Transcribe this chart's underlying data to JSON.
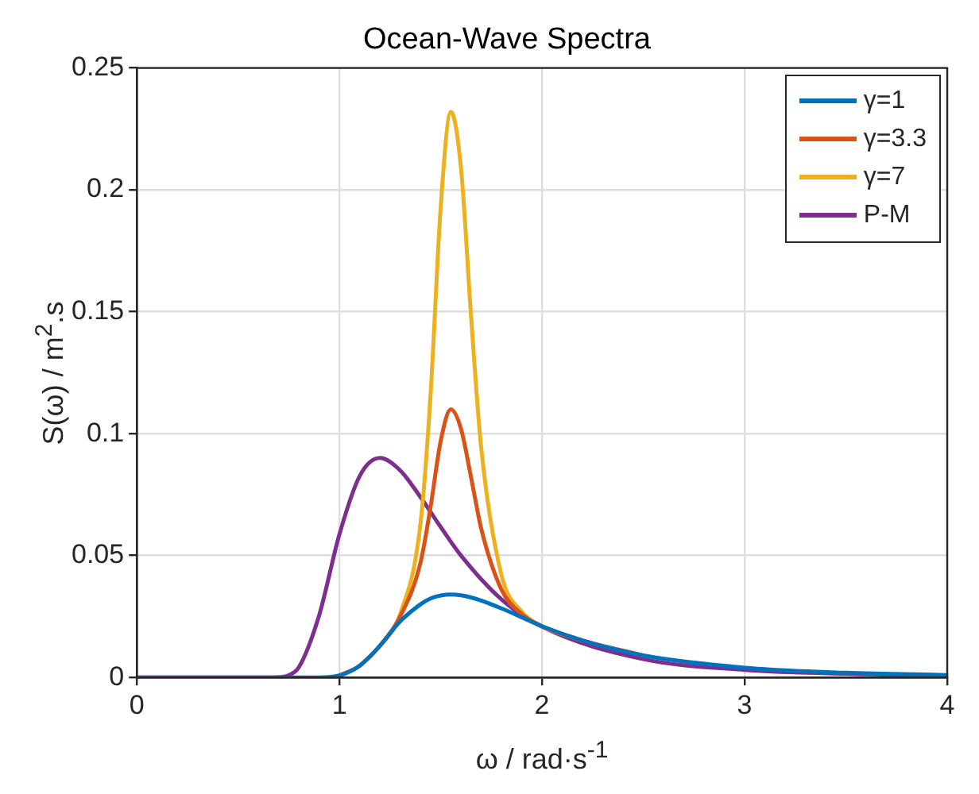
{
  "chart_data": {
    "type": "line",
    "title": "Ocean-Wave Spectra",
    "xlabel": "ω / rad·s$^{-1}$",
    "ylabel": "S(ω) / m$^{2}$.s",
    "xlim": [
      0,
      4
    ],
    "xticks": [
      0,
      1,
      2,
      3,
      4
    ],
    "ylim": [
      0,
      0.25
    ],
    "yticks": [
      0,
      0.05,
      0.1,
      0.15,
      0.2,
      0.25
    ],
    "grid": true,
    "legend": "top right",
    "series": [
      {
        "name": "γ=1",
        "color": "#0072bd",
        "x": [
          0,
          0.9,
          1.0,
          1.1,
          1.2,
          1.3,
          1.4,
          1.45,
          1.5,
          1.55,
          1.6,
          1.65,
          1.7,
          1.8,
          1.9,
          2.0,
          2.2,
          2.5,
          3,
          3.5,
          4
        ],
        "values": [
          0,
          0,
          0.0008,
          0.0048,
          0.013,
          0.023,
          0.03,
          0.0324,
          0.0336,
          0.034,
          0.0337,
          0.0328,
          0.0315,
          0.0283,
          0.0247,
          0.021,
          0.0152,
          0.009,
          0.004,
          0.0019,
          0.001
        ]
      },
      {
        "name": "γ=3.3",
        "color": "#d95319",
        "x": [
          1.0,
          1.1,
          1.2,
          1.3,
          1.4,
          1.45,
          1.5,
          1.55,
          1.6,
          1.65,
          1.7,
          1.8,
          1.9,
          2.0,
          2.2,
          2.5
        ],
        "values": [
          0.0008,
          0.0048,
          0.013,
          0.025,
          0.047,
          0.07,
          0.097,
          0.11,
          0.102,
          0.082,
          0.061,
          0.036,
          0.026,
          0.021,
          0.0152,
          0.009
        ]
      },
      {
        "name": "γ=7",
        "color": "#edb120",
        "x": [
          1.1,
          1.2,
          1.3,
          1.4,
          1.45,
          1.5,
          1.55,
          1.6,
          1.65,
          1.7,
          1.8,
          1.9,
          2.0,
          2.2
        ],
        "values": [
          0.0048,
          0.013,
          0.026,
          0.063,
          0.116,
          0.193,
          0.232,
          0.209,
          0.148,
          0.094,
          0.042,
          0.027,
          0.021,
          0.0152
        ]
      },
      {
        "name": "P-M",
        "color": "#7e2f8e",
        "x": [
          0,
          0.6,
          0.7,
          0.75,
          0.8,
          0.9,
          1.0,
          1.1,
          1.2,
          1.3,
          1.4,
          1.5,
          1.6,
          1.8,
          2.0,
          2.5,
          3,
          3.5,
          4
        ],
        "values": [
          0,
          0,
          0.0001,
          0.0009,
          0.0042,
          0.0255,
          0.0587,
          0.0826,
          0.09,
          0.0849,
          0.074,
          0.0617,
          0.05,
          0.032,
          0.0208,
          0.0075,
          0.0031,
          0.0015,
          0.0008
        ]
      }
    ]
  }
}
